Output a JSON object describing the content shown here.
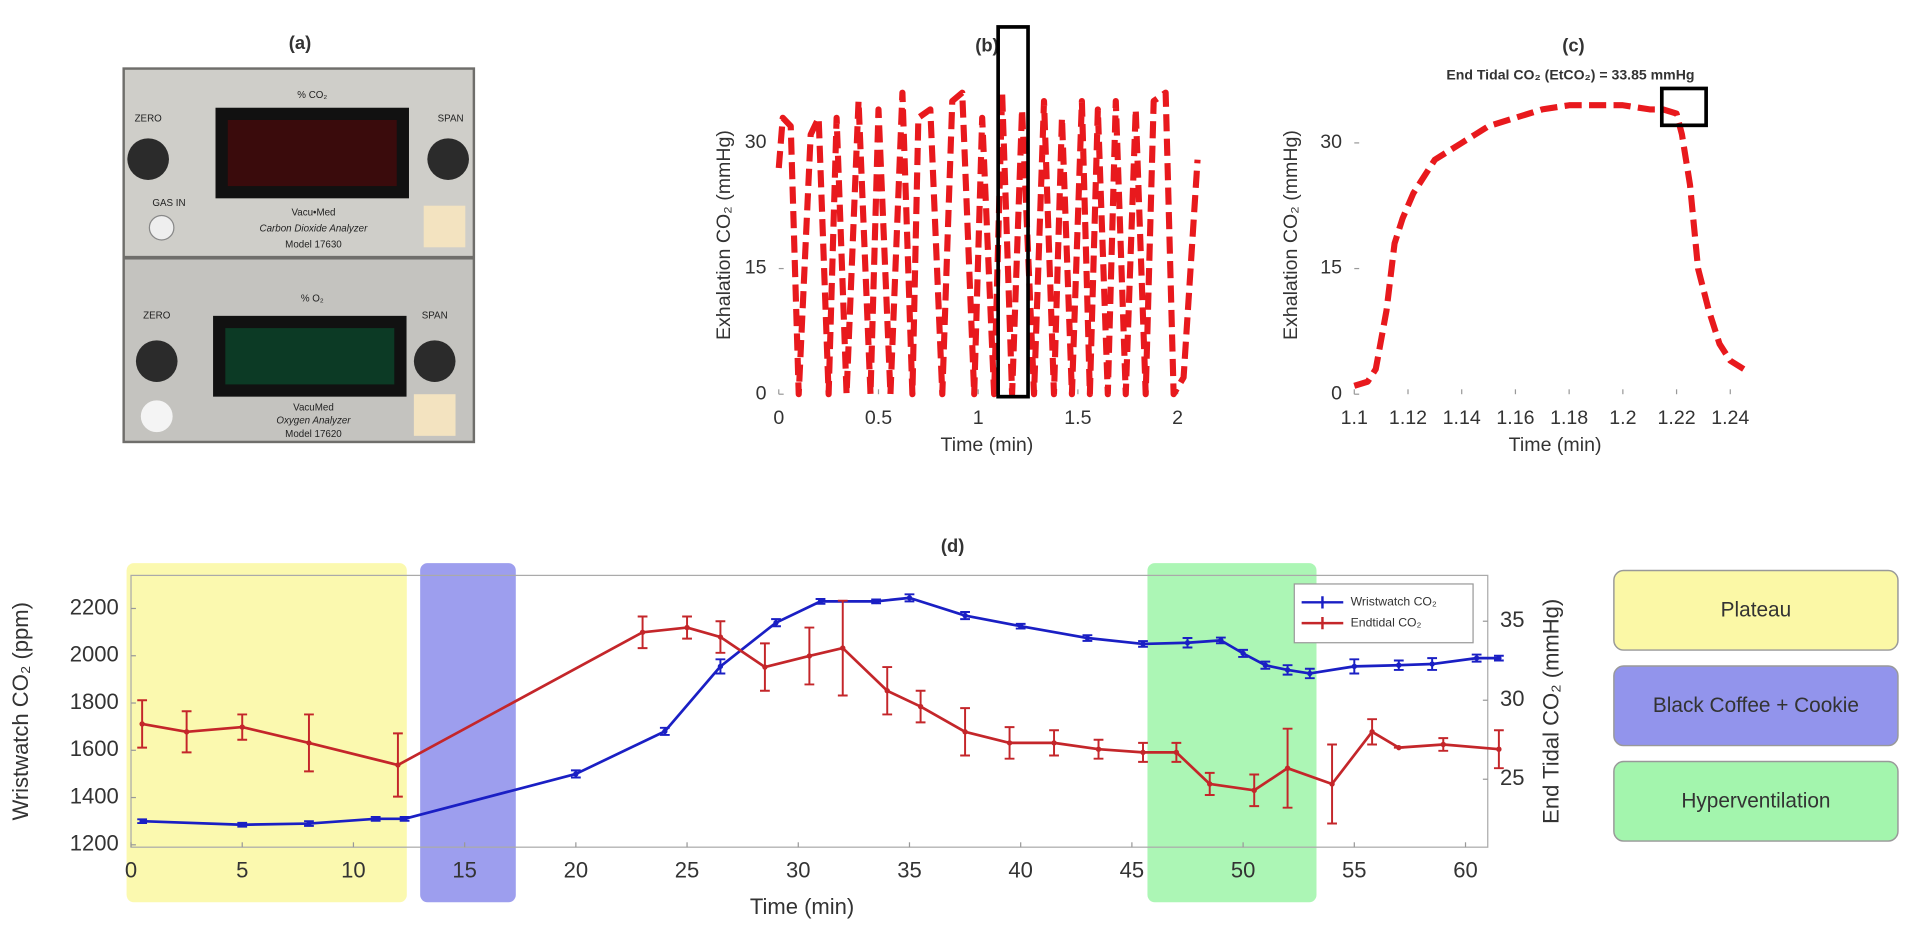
{
  "photo": {
    "title": "(a)",
    "labels": [
      "% CO₂",
      "ZERO",
      "SPAN",
      "GAS IN",
      "Vacu•Med",
      "Carbon Dioxide Analyzer",
      "Model 17630",
      "% O₂",
      "ZERO",
      "SPAN",
      "VacuMed",
      "Oxygen Analyzer",
      "Model 17620"
    ]
  },
  "chart_data": [
    {
      "type": "line",
      "title": "(b)",
      "xlabel": "Time (min)",
      "ylabel": "Exhalation CO₂ (mmHg)",
      "x": [
        0,
        0.02,
        0.06,
        0.1,
        0.16,
        0.2,
        0.25,
        0.29,
        0.34,
        0.4,
        0.46,
        0.5,
        0.56,
        0.62,
        0.67,
        0.7,
        0.76,
        0.82,
        0.87,
        0.92,
        0.98,
        1.02,
        1.08,
        1.12,
        1.17,
        1.22,
        1.28,
        1.33,
        1.38,
        1.42,
        1.47,
        1.52,
        1.56,
        1.6,
        1.65,
        1.69,
        1.74,
        1.79,
        1.84,
        1.88,
        1.94,
        1.98,
        2.03,
        2.1
      ],
      "values": [
        27,
        33,
        32,
        0,
        31,
        33,
        0,
        33,
        0,
        35,
        0,
        34,
        0,
        36,
        0,
        33,
        34,
        0,
        35,
        36,
        0,
        33,
        0,
        36,
        0,
        34,
        0,
        35,
        0,
        33,
        0,
        35,
        0,
        34,
        0,
        35,
        0,
        34,
        0,
        35,
        36,
        0,
        2,
        28
      ],
      "color": "#e8191d",
      "dashed": true,
      "xlim": [
        0,
        2.1
      ],
      "xticks": [
        0,
        0.5,
        1,
        1.5,
        2
      ],
      "ylim": [
        0,
        38
      ],
      "yticks": [
        0,
        15,
        30
      ],
      "highlight_x": [
        1.1,
        1.25
      ],
      "grid": false
    },
    {
      "type": "line",
      "title": "(c)",
      "xlabel": "Time (min)",
      "ylabel": "Exhalation CO₂ (mmHg)",
      "annotation": "End Tidal CO₂ (EtCO₂) = 33.85 mmHg",
      "x": [
        1.1,
        1.105,
        1.108,
        1.112,
        1.115,
        1.118,
        1.122,
        1.126,
        1.13,
        1.135,
        1.14,
        1.145,
        1.15,
        1.16,
        1.17,
        1.18,
        1.19,
        1.2,
        1.21,
        1.215,
        1.22,
        1.222,
        1.225,
        1.228,
        1.232,
        1.236,
        1.24,
        1.245
      ],
      "values": [
        1,
        1.5,
        3,
        10,
        18,
        21,
        24,
        26,
        28,
        29,
        30,
        31,
        32,
        33,
        34,
        34.5,
        34.5,
        34.5,
        34,
        34,
        33.5,
        31,
        25,
        15,
        10,
        6,
        4,
        3
      ],
      "color": "#e8191d",
      "dashed": true,
      "xlim": [
        1.1,
        1.25
      ],
      "xticks": [
        1.1,
        1.12,
        1.14,
        1.16,
        1.18,
        1.2,
        1.22,
        1.24
      ],
      "ylim": [
        0,
        38
      ],
      "yticks": [
        0,
        15,
        30
      ],
      "box": {
        "x": [
          1.2145,
          1.231
        ],
        "y": [
          32.1,
          36.5
        ]
      },
      "grid": false
    },
    {
      "type": "line",
      "title": "(d)",
      "xlabel": "Time (min)",
      "ylabel": "Wristwatch CO₂ (ppm)",
      "y2label": "End Tidal CO₂ (mmHg)",
      "y_color": "#2a90c0",
      "y2_color": "#d9622b",
      "xlim": [
        0,
        61
      ],
      "xticks": [
        0,
        5,
        10,
        15,
        20,
        25,
        30,
        35,
        40,
        45,
        50,
        55,
        60
      ],
      "ylim": [
        1190,
        2340
      ],
      "yticks": [
        1200,
        1400,
        1600,
        1800,
        2000,
        2200
      ],
      "y2lim": [
        20.7,
        37.9
      ],
      "y2ticks": [
        25,
        30,
        35
      ],
      "legend": "upper right",
      "frame": true,
      "grid": false,
      "regions": [
        {
          "name": "Plateau",
          "color": "#fbf8a6",
          "x": [
            -0.2,
            12.4
          ]
        },
        {
          "name": "Black Coffee + Cookie",
          "color": "#9294ec",
          "x": [
            13,
            17.3
          ]
        },
        {
          "name": "Hyperventilation",
          "color": "#a3f5ad",
          "x": [
            45.7,
            53.3
          ]
        }
      ],
      "series": [
        {
          "name": "Wristwatch CO₂",
          "color": "#1a1fc4",
          "x": [
            0.5,
            5,
            8,
            11,
            12.3,
            20,
            24,
            26.5,
            29,
            31,
            33.5,
            35,
            37.5,
            40,
            43,
            45.5,
            47.5,
            49,
            50,
            51,
            52,
            53,
            55,
            57,
            58.5,
            60.5,
            61.5
          ],
          "values": [
            1300,
            1285,
            1290,
            1310,
            1310,
            1500,
            1680,
            1955,
            2140,
            2230,
            2230,
            2245,
            2170,
            2125,
            2075,
            2050,
            2055,
            2065,
            2010,
            1960,
            1940,
            1925,
            1955,
            1960,
            1965,
            1990,
            1990
          ],
          "errors": [
            8,
            8,
            10,
            8,
            8,
            15,
            15,
            30,
            15,
            10,
            8,
            15,
            15,
            10,
            12,
            12,
            20,
            12,
            15,
            15,
            20,
            20,
            30,
            20,
            25,
            15,
            10
          ]
        },
        {
          "name": "Endtidal CO₂",
          "color": "#c4262a",
          "axis": "y2",
          "x": [
            0.5,
            2.5,
            5,
            8,
            12,
            23,
            25,
            26.5,
            28.5,
            30.5,
            32,
            34,
            35.5,
            37.5,
            39.5,
            41.5,
            43.5,
            45.5,
            47,
            48.5,
            50.5,
            52,
            54,
            55.8,
            57,
            59,
            61.5
          ],
          "values": [
            28.5,
            28,
            28.3,
            27.3,
            25.9,
            34.3,
            34.6,
            34,
            32.1,
            32.8,
            33.3,
            30.6,
            29.6,
            28,
            27.3,
            27.3,
            26.9,
            26.7,
            26.7,
            24.7,
            24.3,
            25.7,
            24.7,
            28,
            27,
            27.2,
            26.9
          ],
          "errors": [
            1.5,
            1.3,
            0.8,
            1.8,
            2,
            1,
            0.7,
            1,
            1.5,
            1.8,
            3,
            1.5,
            1,
            1.5,
            1,
            0.8,
            0.6,
            0.6,
            0.6,
            0.7,
            1,
            2.5,
            2.5,
            0.8,
            0,
            0.4,
            1.2
          ]
        }
      ]
    }
  ]
}
